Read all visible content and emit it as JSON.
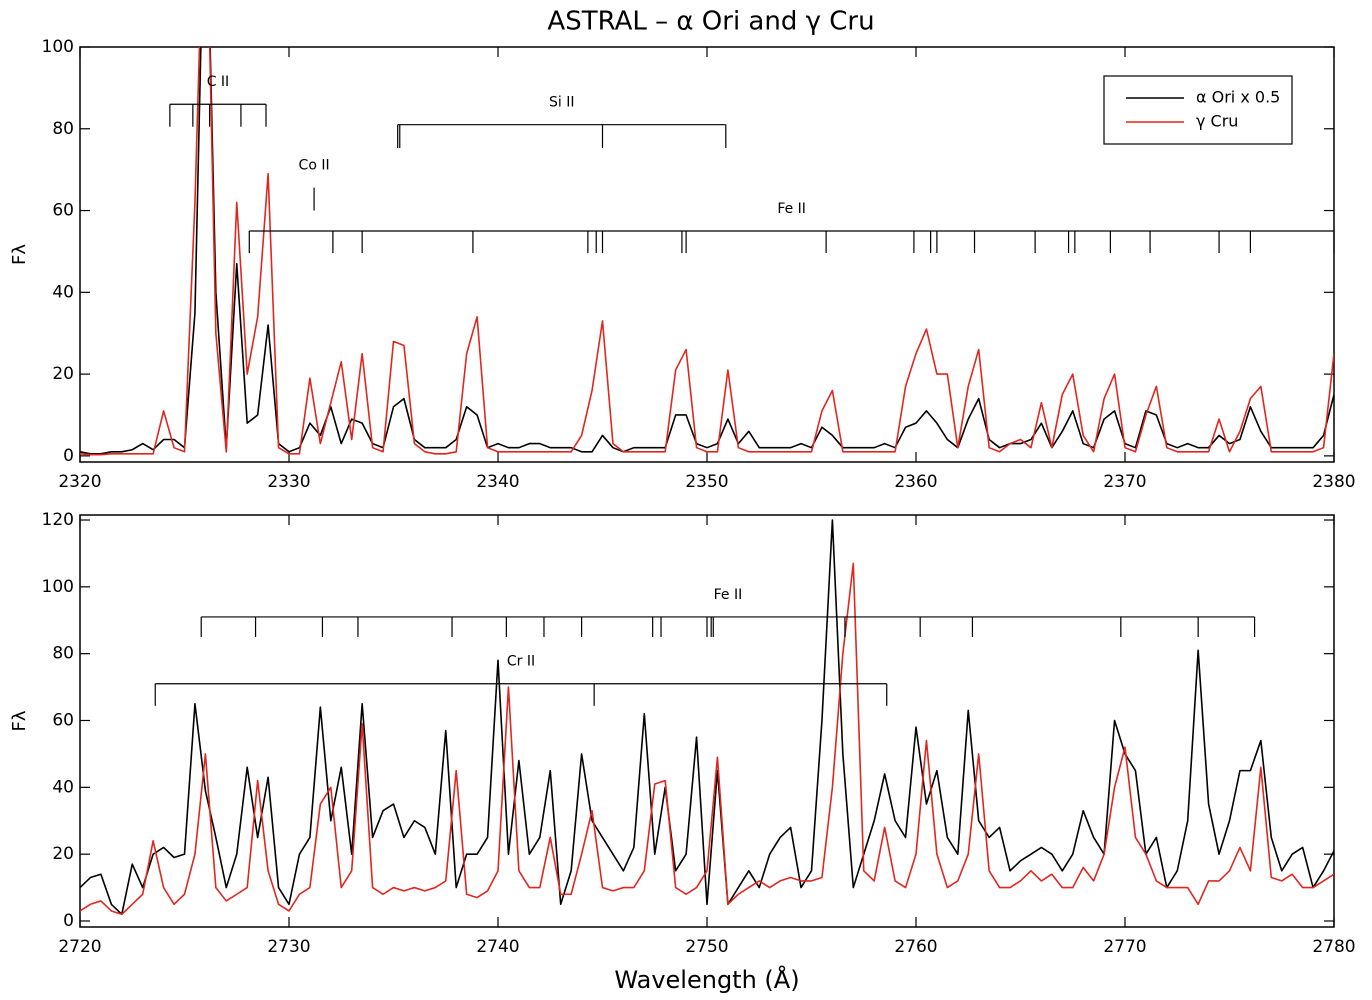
{
  "chart_data": [
    {
      "type": "line",
      "title": "ASTRAL – α Ori and γ Cru",
      "y_label": "Fλ",
      "xlim": [
        2320,
        2380
      ],
      "xticks": [
        2320,
        2330,
        2340,
        2350,
        2360,
        2370,
        2380
      ],
      "ylim": [
        -1.5,
        100
      ],
      "yticks": [
        0,
        20,
        40,
        60,
        80,
        100
      ],
      "legend": "upper right",
      "x": [
        2320,
        2320.5,
        2321,
        2321.5,
        2322,
        2322.5,
        2323,
        2323.5,
        2324,
        2324.5,
        2325,
        2325.5,
        2326,
        2326.5,
        2327,
        2327.5,
        2328,
        2328.5,
        2329,
        2329.5,
        2330,
        2330.5,
        2331,
        2331.5,
        2332,
        2332.5,
        2333,
        2333.5,
        2334,
        2334.5,
        2335,
        2335.5,
        2336,
        2336.5,
        2337,
        2337.5,
        2338,
        2338.5,
        2339,
        2339.5,
        2340,
        2340.5,
        2341,
        2341.5,
        2342,
        2342.5,
        2343,
        2343.5,
        2344,
        2344.5,
        2345,
        2345.5,
        2346,
        2346.5,
        2347,
        2347.5,
        2348,
        2348.5,
        2349,
        2349.5,
        2350,
        2350.5,
        2351,
        2351.5,
        2352,
        2352.5,
        2353,
        2353.5,
        2354,
        2354.5,
        2355,
        2355.5,
        2356,
        2356.5,
        2357,
        2357.5,
        2358,
        2358.5,
        2359,
        2359.5,
        2360,
        2360.5,
        2361,
        2361.5,
        2362,
        2362.5,
        2363,
        2363.5,
        2364,
        2364.5,
        2365,
        2365.5,
        2366,
        2366.5,
        2367,
        2367.5,
        2368,
        2368.5,
        2369,
        2369.5,
        2370,
        2370.5,
        2371,
        2371.5,
        2372,
        2372.5,
        2373,
        2373.5,
        2374,
        2374.5,
        2375,
        2375.5,
        2376,
        2376.5,
        2377,
        2377.5,
        2378,
        2378.5,
        2379,
        2379.5,
        2380
      ],
      "series": [
        {
          "name": "α Ori x 0.5",
          "color": "#000000",
          "values": [
            1,
            0.5,
            0.5,
            1,
            1,
            1.5,
            3,
            1.5,
            4,
            4,
            2,
            35,
            150,
            40,
            2,
            47,
            8,
            10,
            32,
            3,
            1,
            2,
            8,
            5,
            12,
            3,
            9,
            8,
            3,
            2,
            12,
            14,
            4,
            2,
            2,
            2,
            4,
            12,
            10,
            2,
            3,
            2,
            2,
            3,
            3,
            2,
            2,
            2,
            1,
            1,
            5,
            2,
            1,
            2,
            2,
            2,
            2,
            10,
            10,
            3,
            2,
            3,
            9,
            3,
            6,
            2,
            2,
            2,
            2,
            3,
            2,
            7,
            5,
            2,
            2,
            2,
            2,
            3,
            2,
            7,
            8,
            11,
            8,
            4,
            2,
            9,
            14,
            4,
            2,
            3,
            3,
            4,
            8,
            2,
            6,
            11,
            3,
            2,
            9,
            11,
            3,
            2,
            11,
            10,
            3,
            2,
            3,
            2,
            2,
            5,
            3,
            4,
            12,
            6,
            2,
            2,
            2,
            2,
            2,
            5,
            15
          ]
        },
        {
          "name": "γ Cru",
          "color": "#e0271f",
          "values": [
            0.5,
            0.3,
            0.3,
            0.5,
            0.5,
            0.5,
            0.5,
            0.5,
            11,
            2,
            1,
            62,
            150,
            30,
            1,
            62,
            20,
            34,
            69,
            2,
            0.5,
            0.5,
            19,
            3,
            13,
            23,
            4,
            25,
            2,
            1,
            28,
            27,
            3,
            1,
            0.5,
            0.5,
            1,
            25,
            34,
            2,
            1,
            1,
            1,
            1,
            1,
            1,
            1,
            1,
            5,
            16,
            33,
            3,
            1,
            1,
            1,
            1,
            1,
            21,
            26,
            2,
            1,
            1,
            21,
            2,
            1,
            1,
            1,
            1,
            1,
            1,
            1,
            11,
            16,
            1,
            1,
            1,
            1,
            1,
            1,
            17,
            25,
            31,
            20,
            20,
            2,
            17,
            26,
            2,
            1,
            3,
            4,
            2,
            13,
            2,
            15,
            20,
            5,
            1,
            14,
            20,
            2,
            1,
            10,
            17,
            2,
            1,
            1,
            1,
            1,
            9,
            1,
            6,
            14,
            17,
            1,
            1,
            1,
            1,
            1,
            2,
            25
          ]
        }
      ],
      "markers": [
        {
          "label": "C II",
          "top": 86,
          "bottom": 80.5,
          "x": [
            2324.3,
            2325.4,
            2326.2,
            2327.7,
            2328.9
          ]
        },
        {
          "label": "Si II",
          "top": 81,
          "bottom": 75.3,
          "x": [
            2335.2,
            2335.3,
            2345.0,
            2350.9
          ]
        },
        {
          "label": "Co II",
          "top": 65.6,
          "bottom": 60,
          "x": [
            2331.2
          ]
        },
        {
          "label": "Fe II",
          "top": 55,
          "bottom": 49.6,
          "x": [
            2328.1,
            2332.1,
            2333.5,
            2338.8,
            2344.3,
            2344.7,
            2345.0,
            2348.8,
            2349.0,
            2355.7,
            2359.9,
            2360.7,
            2361.0,
            2362.8,
            2365.7,
            2367.3,
            2367.6,
            2369.3,
            2371.2,
            2374.5,
            2376.0,
            2380.0
          ]
        }
      ]
    },
    {
      "type": "line",
      "y_label": "Fλ",
      "x_label": "Wavelength (Å)",
      "xlim": [
        2720,
        2780
      ],
      "xticks": [
        2720,
        2730,
        2740,
        2750,
        2760,
        2770,
        2780
      ],
      "ylim": [
        -1.8,
        121.5
      ],
      "yticks": [
        0,
        20,
        40,
        60,
        80,
        100,
        120
      ],
      "x": [
        2720,
        2720.5,
        2721,
        2721.5,
        2722,
        2722.5,
        2723,
        2723.5,
        2724,
        2724.5,
        2725,
        2725.5,
        2726,
        2726.5,
        2727,
        2727.5,
        2728,
        2728.5,
        2729,
        2729.5,
        2730,
        2730.5,
        2731,
        2731.5,
        2732,
        2732.5,
        2733,
        2733.5,
        2734,
        2734.5,
        2735,
        2735.5,
        2736,
        2736.5,
        2737,
        2737.5,
        2738,
        2738.5,
        2739,
        2739.5,
        2740,
        2740.5,
        2741,
        2741.5,
        2742,
        2742.5,
        2743,
        2743.5,
        2744,
        2744.5,
        2745,
        2745.5,
        2746,
        2746.5,
        2747,
        2747.5,
        2748,
        2748.5,
        2749,
        2749.5,
        2750,
        2750.5,
        2751,
        2751.5,
        2752,
        2752.5,
        2753,
        2753.5,
        2754,
        2754.5,
        2755,
        2755.5,
        2756,
        2756.5,
        2757,
        2757.5,
        2758,
        2758.5,
        2759,
        2759.5,
        2760,
        2760.5,
        2761,
        2761.5,
        2762,
        2762.5,
        2763,
        2763.5,
        2764,
        2764.5,
        2765,
        2765.5,
        2766,
        2766.5,
        2767,
        2767.5,
        2768,
        2768.5,
        2769,
        2769.5,
        2770,
        2770.5,
        2771,
        2771.5,
        2772,
        2772.5,
        2773,
        2773.5,
        2774,
        2774.5,
        2775,
        2775.5,
        2776,
        2776.5,
        2777,
        2777.5,
        2778,
        2778.5,
        2779,
        2779.5,
        2780
      ],
      "series": [
        {
          "name": "α Ori x 0.5",
          "color": "#000000",
          "values": [
            10,
            13,
            14,
            5,
            2,
            17,
            10,
            20,
            22,
            19,
            20,
            65,
            39,
            25,
            10,
            20,
            46,
            25,
            43,
            10,
            5,
            20,
            25,
            64,
            30,
            46,
            20,
            65,
            25,
            33,
            35,
            25,
            30,
            28,
            20,
            57,
            10,
            20,
            20,
            25,
            78,
            20,
            48,
            20,
            25,
            45,
            5,
            15,
            50,
            30,
            25,
            20,
            15,
            22,
            62,
            20,
            40,
            15,
            20,
            55,
            5,
            45,
            5,
            10,
            15,
            10,
            20,
            25,
            28,
            10,
            15,
            60,
            120,
            50,
            10,
            20,
            30,
            44,
            30,
            25,
            58,
            35,
            45,
            25,
            20,
            63,
            30,
            25,
            28,
            15,
            18,
            20,
            22,
            20,
            15,
            20,
            33,
            25,
            20,
            60,
            50,
            45,
            20,
            25,
            10,
            15,
            30,
            81,
            35,
            20,
            30,
            45,
            45,
            54,
            25,
            15,
            20,
            22,
            10,
            15,
            21
          ]
        },
        {
          "name": "γ Cru",
          "color": "#e0271f",
          "values": [
            3,
            5,
            6,
            3,
            2,
            5,
            8,
            24,
            10,
            5,
            8,
            20,
            50,
            10,
            6,
            8,
            10,
            42,
            15,
            5,
            3,
            8,
            10,
            35,
            40,
            10,
            15,
            59,
            10,
            8,
            10,
            9,
            10,
            9,
            10,
            12,
            45,
            8,
            7,
            9,
            15,
            70,
            15,
            10,
            10,
            25,
            8,
            8,
            20,
            33,
            10,
            9,
            10,
            10,
            15,
            41,
            42,
            10,
            8,
            10,
            15,
            49,
            5,
            8,
            10,
            12,
            10,
            12,
            13,
            12,
            12,
            13,
            40,
            80,
            107,
            15,
            12,
            28,
            12,
            10,
            20,
            54,
            20,
            10,
            12,
            20,
            50,
            15,
            10,
            10,
            12,
            15,
            12,
            14,
            10,
            10,
            16,
            12,
            20,
            40,
            52,
            25,
            20,
            12,
            10,
            10,
            10,
            5,
            12,
            12,
            15,
            22,
            15,
            46,
            13,
            12,
            14,
            10,
            10,
            12,
            14
          ]
        }
      ],
      "markers": [
        {
          "label": "Fe II",
          "top": 91,
          "bottom": 85,
          "x": [
            2725.8,
            2728.4,
            2731.6,
            2733.3,
            2737.8,
            2740.4,
            2742.2,
            2744.0,
            2747.4,
            2747.8,
            2750.0,
            2750.2,
            2750.3,
            2756.6,
            2760.2,
            2762.7,
            2769.8,
            2773.5,
            2776.2
          ]
        },
        {
          "label": "Cr II",
          "top": 71,
          "bottom": 64.4,
          "x": [
            2723.6,
            2744.6,
            2758.6
          ]
        }
      ]
    }
  ]
}
